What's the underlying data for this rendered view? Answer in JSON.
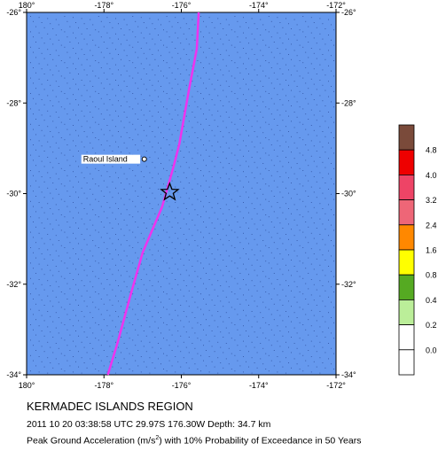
{
  "map": {
    "lon_range": [
      180,
      -172
    ],
    "lat_range": [
      -34,
      -26
    ],
    "lon_ticks": [
      "180°",
      "-178°",
      "-176°",
      "-174°",
      "-172°"
    ],
    "lat_ticks": [
      "-26°",
      "-28°",
      "-30°",
      "-32°",
      "-34°"
    ],
    "ocean_color": "#6699ee",
    "plate_boundary_color": "#ee33ee",
    "epicenter_symbol": "star-icon",
    "epicenter": {
      "lat": -29.97,
      "lon": -176.3
    },
    "plate_boundary": [
      {
        "lon": -175.55,
        "lat": -26.0
      },
      {
        "lon": -175.6,
        "lat": -26.8
      },
      {
        "lon": -175.8,
        "lat": -27.7
      },
      {
        "lon": -176.05,
        "lat": -28.9
      },
      {
        "lon": -176.2,
        "lat": -29.4
      },
      {
        "lon": -176.5,
        "lat": -30.3
      },
      {
        "lon": -177.0,
        "lat": -31.3
      },
      {
        "lon": -177.3,
        "lat": -32.2
      },
      {
        "lon": -177.65,
        "lat": -33.3
      },
      {
        "lon": -177.9,
        "lat": -34.0
      }
    ],
    "places": [
      {
        "name": "Raoul Island",
        "lat": -29.25,
        "lon": -177.92
      }
    ]
  },
  "legend": {
    "labels": [
      "4.8",
      "4.0",
      "3.2",
      "2.4",
      "1.6",
      "0.8",
      "0.4",
      "0.2",
      "0.0"
    ],
    "colors": [
      "#7a4a3a",
      "#ee0000",
      "#ee4466",
      "#ee6677",
      "#ff8800",
      "#ffff00",
      "#55aa22",
      "#bbee99",
      "#ffffff",
      "#ffffff"
    ]
  },
  "caption": {
    "region": "KERMADEC ISLANDS REGION",
    "event": "2011 10 20 03:38:58 UTC 29.97S 176.30W Depth: 34.7 km",
    "pga_prefix": "Peak Ground Acceleration (m/s",
    "pga_exponent": "2",
    "pga_suffix": ") with 10% Probability of Exceedance in 50 Years"
  }
}
